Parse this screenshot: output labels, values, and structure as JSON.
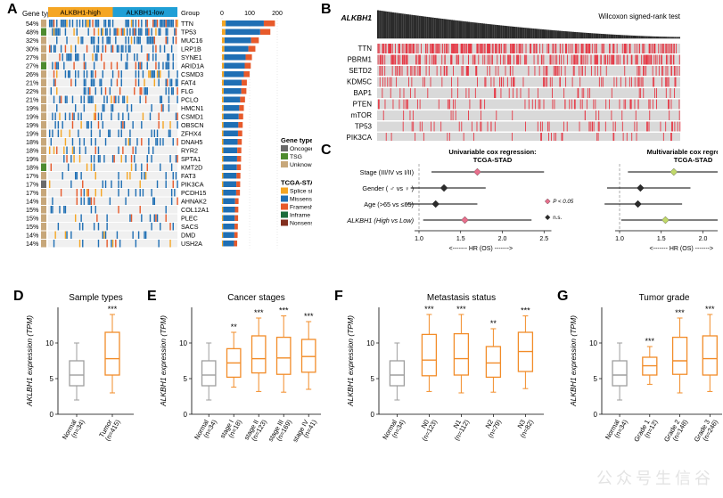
{
  "panelA": {
    "label": "A",
    "gene_type_label": "Gene type",
    "group_header_high": "ALKBH1-high",
    "group_header_low": "ALKBH1-low",
    "group_label": "Group",
    "header_colors": {
      "high": "#f5a623",
      "low": "#1f9fd6"
    },
    "bar_axis_ticks": [
      "0",
      "100",
      "200"
    ],
    "genes": [
      {
        "pct": "54%",
        "name": "TTN",
        "bar": 230
      },
      {
        "pct": "48%",
        "name": "TP53",
        "bar": 210
      },
      {
        "pct": "32%",
        "name": "MUC16",
        "bar": 160
      },
      {
        "pct": "30%",
        "name": "LRP1B",
        "bar": 145
      },
      {
        "pct": "27%",
        "name": "SYNE1",
        "bar": 130
      },
      {
        "pct": "27%",
        "name": "ARID1A",
        "bar": 125
      },
      {
        "pct": "26%",
        "name": "CSMD3",
        "bar": 120
      },
      {
        "pct": "21%",
        "name": "FAT4",
        "bar": 108
      },
      {
        "pct": "22%",
        "name": "FLG",
        "bar": 106
      },
      {
        "pct": "21%",
        "name": "PCLO",
        "bar": 100
      },
      {
        "pct": "19%",
        "name": "HMCN1",
        "bar": 95
      },
      {
        "pct": "19%",
        "name": "CSMD1",
        "bar": 92
      },
      {
        "pct": "19%",
        "name": "OBSCN",
        "bar": 90
      },
      {
        "pct": "19%",
        "name": "ZFHX4",
        "bar": 88
      },
      {
        "pct": "18%",
        "name": "DNAH5",
        "bar": 86
      },
      {
        "pct": "18%",
        "name": "RYR2",
        "bar": 84
      },
      {
        "pct": "19%",
        "name": "SPTA1",
        "bar": 83
      },
      {
        "pct": "18%",
        "name": "KMT2D",
        "bar": 82
      },
      {
        "pct": "17%",
        "name": "FAT3",
        "bar": 80
      },
      {
        "pct": "17%",
        "name": "PIK3CA",
        "bar": 79
      },
      {
        "pct": "17%",
        "name": "PCDH15",
        "bar": 78
      },
      {
        "pct": "14%",
        "name": "AHNAK2",
        "bar": 72
      },
      {
        "pct": "15%",
        "name": "COL12A1",
        "bar": 71
      },
      {
        "pct": "15%",
        "name": "PLEC",
        "bar": 70
      },
      {
        "pct": "15%",
        "name": "SACS",
        "bar": 69
      },
      {
        "pct": "14%",
        "name": "DMD",
        "bar": 68
      },
      {
        "pct": "14%",
        "name": "USH2A",
        "bar": 66
      }
    ],
    "legend_gene_type": {
      "title": "Gene type",
      "items": [
        {
          "label": "Oncogene",
          "color": "#6a6a6a"
        },
        {
          "label": "TSG",
          "color": "#4e8b2f"
        },
        {
          "label": "Unknown",
          "color": "#c7a77a"
        }
      ]
    },
    "legend_mut": {
      "title": "TCGA-STAD",
      "items": [
        {
          "label": "Splice site",
          "color": "#f5a623"
        },
        {
          "label": "Missense",
          "color": "#1f6fb4"
        },
        {
          "label": "Frameshift",
          "color": "#e75a2b"
        },
        {
          "label": "Inframe ins/del",
          "color": "#1b6b3a"
        },
        {
          "label": "Nonsense",
          "color": "#822f1f"
        }
      ]
    },
    "heatmap_colors": {
      "bg": "#f0f0f0",
      "mark": "#1f6fb4",
      "mark2": "#e75a2b",
      "mark3": "#f5a623"
    },
    "bar_colors": {
      "splice": "#f5a623",
      "missense": "#1f6fb4",
      "frameshift": "#e75a2b"
    }
  },
  "panelB": {
    "label": "B",
    "main_gene": "ALKBH1",
    "test_label": "Wilcoxon signed-rank test",
    "tracks": [
      "TTN",
      "PBRM1",
      "SETD2",
      "KDM5C",
      "BAP1",
      "PTEN",
      "mTOR",
      "TP53",
      "PIK3CA"
    ],
    "track_bg": "#d9d9d9",
    "tick_color": "#e63946",
    "bar_color": "#2b2b2b",
    "densities": [
      0.85,
      0.65,
      0.3,
      0.2,
      0.14,
      0.18,
      0.08,
      0.15,
      0.1
    ]
  },
  "panelC": {
    "label": "C",
    "left_title": "Univariable cox regression:\nTCGA-STAD",
    "right_title": "Multivariable cox regression:\nTCGA-STAD",
    "rows": [
      "Stage (III/IV vs I/II)",
      "Gender ( ♂ vs ♀ )",
      "Age (>65 vs ≤65)",
      "ALKBH1 (High vs Low)"
    ],
    "xlabel": "HR (OS)",
    "xarrows": "<------- HR (OS) ------->",
    "xticks": [
      "1.0",
      "1.5",
      "2.0",
      "2.5"
    ],
    "legend": [
      {
        "label": "P < 0.05",
        "color_u": "#e76f8c",
        "color_m": "#c1d96a"
      },
      {
        "label": "n.s.",
        "color": "#2b2b2b"
      }
    ],
    "uni": [
      {
        "hr": 1.7,
        "lo": 1.15,
        "hi": 2.5,
        "sig": true
      },
      {
        "hr": 1.3,
        "lo": 0.9,
        "hi": 1.8,
        "sig": false
      },
      {
        "hr": 1.2,
        "lo": 0.85,
        "hi": 1.7,
        "sig": false
      },
      {
        "hr": 1.55,
        "lo": 1.05,
        "hi": 2.35,
        "sig": true
      }
    ],
    "multi": [
      {
        "hr": 1.65,
        "lo": 1.1,
        "hi": 2.55,
        "sig": true
      },
      {
        "hr": 1.25,
        "lo": 0.85,
        "hi": 1.85,
        "sig": false
      },
      {
        "hr": 1.22,
        "lo": 0.82,
        "hi": 1.75,
        "sig": false
      },
      {
        "hr": 1.55,
        "lo": 1.02,
        "hi": 2.3,
        "sig": true
      }
    ],
    "sig_diamond_uni": "#e76f8c",
    "sig_diamond_multi": "#c1d96a",
    "ns_diamond": "#2b2b2b",
    "ref_line": "#888"
  },
  "boxplots": {
    "ylabel": "ALKBH1 expression (TPM)",
    "ylabel_D": "AKLBH1 expression (TPM)",
    "yticks": [
      0,
      5,
      10
    ],
    "normal_color": "#9e9e9e",
    "tumor_color": "#f28c28",
    "whisker_w": 6,
    "panels": [
      {
        "id": "D",
        "title": "Sample types",
        "groups": [
          {
            "label": "Normal\n(n=34)",
            "type": "normal",
            "q1": 4.0,
            "med": 5.5,
            "q3": 7.5,
            "lo": 2.0,
            "hi": 10.0,
            "sig": ""
          },
          {
            "label": "Tumor\n(n=415)",
            "type": "tumor",
            "q1": 5.5,
            "med": 7.8,
            "q3": 11.5,
            "lo": 3.0,
            "hi": 14.0,
            "sig": "***"
          }
        ]
      },
      {
        "id": "E",
        "title": "Cancer stages",
        "groups": [
          {
            "label": "Normal\n(n=34)",
            "type": "normal",
            "q1": 4.0,
            "med": 5.5,
            "q3": 7.5,
            "lo": 2.0,
            "hi": 10.0,
            "sig": ""
          },
          {
            "label": "stage I\n(n=18)",
            "type": "tumor",
            "q1": 5.2,
            "med": 7.2,
            "q3": 9.2,
            "lo": 3.8,
            "hi": 11.5,
            "sig": "**"
          },
          {
            "label": "stage II\n(n=123)",
            "type": "tumor",
            "q1": 5.8,
            "med": 7.8,
            "q3": 11.0,
            "lo": 3.2,
            "hi": 13.5,
            "sig": "***"
          },
          {
            "label": "stage III\n(n=169)",
            "type": "tumor",
            "q1": 5.6,
            "med": 7.9,
            "q3": 10.8,
            "lo": 3.1,
            "hi": 13.8,
            "sig": "***"
          },
          {
            "label": "stage IV\n(n=41)",
            "type": "tumor",
            "q1": 5.9,
            "med": 8.1,
            "q3": 10.5,
            "lo": 3.5,
            "hi": 13.0,
            "sig": "***"
          }
        ]
      },
      {
        "id": "F",
        "title": "Metastasis status",
        "groups": [
          {
            "label": "Normal\n(n=34)",
            "type": "normal",
            "q1": 4.0,
            "med": 5.5,
            "q3": 7.5,
            "lo": 2.0,
            "hi": 10.0,
            "sig": ""
          },
          {
            "label": "N0\n(n=123)",
            "type": "tumor",
            "q1": 5.4,
            "med": 7.6,
            "q3": 11.2,
            "lo": 3.2,
            "hi": 14.0,
            "sig": "***"
          },
          {
            "label": "N1\n(n=112)",
            "type": "tumor",
            "q1": 5.5,
            "med": 7.8,
            "q3": 11.3,
            "lo": 3.0,
            "hi": 14.0,
            "sig": "***"
          },
          {
            "label": "N2\n(n=79)",
            "type": "tumor",
            "q1": 5.2,
            "med": 7.2,
            "q3": 9.5,
            "lo": 3.1,
            "hi": 12.0,
            "sig": "**"
          },
          {
            "label": "N3\n(n=82)",
            "type": "tumor",
            "q1": 6.0,
            "med": 8.8,
            "q3": 11.5,
            "lo": 3.6,
            "hi": 13.8,
            "sig": "***"
          }
        ]
      },
      {
        "id": "G",
        "title": "Tumor grade",
        "groups": [
          {
            "label": "Normal\n(n=34)",
            "type": "normal",
            "q1": 4.0,
            "med": 5.5,
            "q3": 7.5,
            "lo": 2.0,
            "hi": 10.0,
            "sig": ""
          },
          {
            "label": "Grade 1\n(n=12)",
            "type": "tumor",
            "q1": 5.5,
            "med": 6.8,
            "q3": 8.0,
            "lo": 4.2,
            "hi": 9.5,
            "sig": "***"
          },
          {
            "label": "Grade 2\n(n=148)",
            "type": "tumor",
            "q1": 5.6,
            "med": 7.5,
            "q3": 10.8,
            "lo": 3.0,
            "hi": 13.5,
            "sig": "***"
          },
          {
            "label": "Grade 3\n(n=246)",
            "type": "tumor",
            "q1": 5.5,
            "med": 7.8,
            "q3": 11.0,
            "lo": 3.2,
            "hi": 14.0,
            "sig": "***"
          }
        ]
      }
    ]
  },
  "watermark": "公众号生信谷"
}
